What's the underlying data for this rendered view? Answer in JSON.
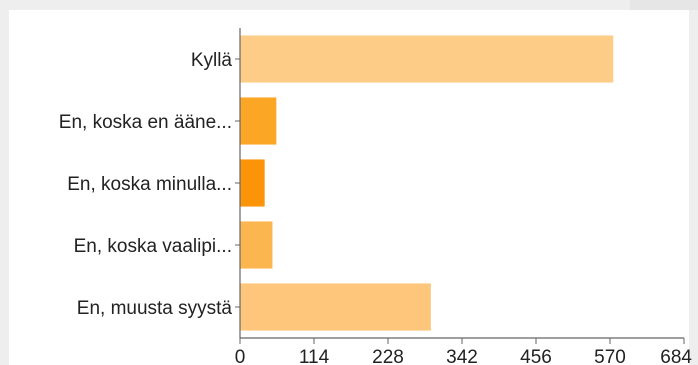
{
  "chart_data": {
    "type": "bar",
    "orientation": "horizontal",
    "categories": [
      "Kyllä",
      "En, koska en ääne...",
      "En, koska minulla...",
      "En, koska vaalipi...",
      "En, muusta syystä"
    ],
    "values": [
      575,
      56,
      38,
      50,
      294
    ],
    "bar_colors": [
      "#fdcd87",
      "#fca625",
      "#fb9409",
      "#fcb64f",
      "#fdc67a"
    ],
    "xlim": [
      0,
      684
    ],
    "xticks": [
      "0",
      "114",
      "228",
      "342",
      "456",
      "570",
      "684"
    ],
    "title": "",
    "xlabel": "",
    "ylabel": "",
    "grid": false,
    "axis_color": "#666666"
  }
}
